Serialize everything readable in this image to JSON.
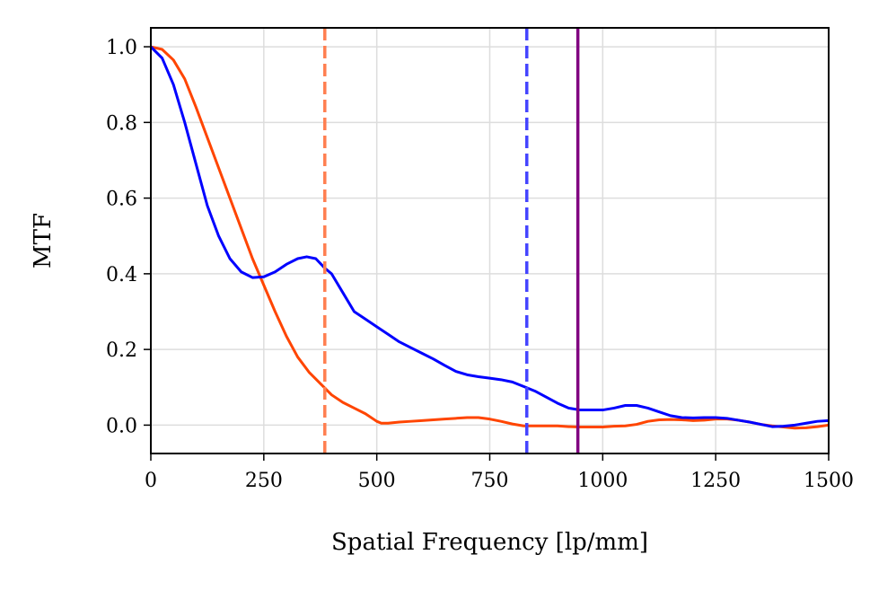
{
  "chart_data": {
    "type": "line",
    "title": "",
    "xlabel": "Spatial Frequency [lp/mm]",
    "ylabel": "MTF",
    "xlim": [
      0,
      1500
    ],
    "ylim": [
      -0.075,
      1.05
    ],
    "grid": true,
    "x_ticks": [
      0,
      250,
      500,
      750,
      1000,
      1250,
      1500
    ],
    "x_tick_labels": [
      "0",
      "250",
      "500",
      "750",
      "1000",
      "1250",
      "1500"
    ],
    "y_ticks": [
      0.0,
      0.2,
      0.4,
      0.6,
      0.8,
      1.0
    ],
    "y_tick_labels": [
      "0.0",
      "0.2",
      "0.4",
      "0.6",
      "0.8",
      "1.0"
    ],
    "series": [
      {
        "name": "orange-red-curve",
        "color": "#ff4500",
        "x": [
          0,
          25,
          50,
          75,
          100,
          125,
          150,
          175,
          200,
          225,
          250,
          275,
          300,
          325,
          350,
          375,
          400,
          425,
          450,
          475,
          500,
          510,
          525,
          550,
          575,
          600,
          625,
          650,
          675,
          700,
          725,
          750,
          775,
          800,
          825,
          850,
          875,
          900,
          925,
          950,
          975,
          1000,
          1025,
          1050,
          1075,
          1100,
          1125,
          1150,
          1175,
          1200,
          1225,
          1250,
          1275,
          1300,
          1325,
          1350,
          1375,
          1400,
          1425,
          1450,
          1475,
          1500
        ],
        "y": [
          1.0,
          0.993,
          0.965,
          0.915,
          0.84,
          0.76,
          0.68,
          0.6,
          0.52,
          0.44,
          0.37,
          0.3,
          0.235,
          0.18,
          0.14,
          0.11,
          0.08,
          0.06,
          0.045,
          0.03,
          0.01,
          0.005,
          0.005,
          0.008,
          0.01,
          0.012,
          0.014,
          0.016,
          0.018,
          0.02,
          0.02,
          0.016,
          0.01,
          0.003,
          -0.002,
          -0.002,
          -0.002,
          -0.002,
          -0.004,
          -0.005,
          -0.005,
          -0.005,
          -0.003,
          -0.002,
          0.002,
          0.01,
          0.014,
          0.015,
          0.014,
          0.012,
          0.013,
          0.016,
          0.016,
          0.013,
          0.008,
          0.002,
          -0.002,
          -0.005,
          -0.008,
          -0.007,
          -0.004,
          0.0
        ]
      },
      {
        "name": "blue-curve",
        "color": "#0000ff",
        "x": [
          0,
          25,
          50,
          75,
          100,
          125,
          150,
          175,
          200,
          225,
          250,
          275,
          300,
          325,
          345,
          365,
          385,
          400,
          425,
          450,
          475,
          500,
          525,
          550,
          575,
          600,
          625,
          650,
          675,
          700,
          725,
          750,
          775,
          800,
          825,
          850,
          875,
          900,
          925,
          950,
          975,
          1000,
          1025,
          1050,
          1075,
          1100,
          1125,
          1150,
          1175,
          1200,
          1225,
          1250,
          1275,
          1300,
          1325,
          1350,
          1375,
          1400,
          1425,
          1450,
          1475,
          1500
        ],
        "y": [
          1.0,
          0.97,
          0.9,
          0.8,
          0.69,
          0.58,
          0.5,
          0.44,
          0.405,
          0.39,
          0.392,
          0.405,
          0.425,
          0.44,
          0.445,
          0.44,
          0.415,
          0.4,
          0.35,
          0.3,
          0.28,
          0.26,
          0.24,
          0.22,
          0.205,
          0.19,
          0.175,
          0.158,
          0.142,
          0.133,
          0.128,
          0.124,
          0.12,
          0.114,
          0.102,
          0.09,
          0.074,
          0.058,
          0.045,
          0.04,
          0.04,
          0.04,
          0.045,
          0.052,
          0.052,
          0.045,
          0.035,
          0.025,
          0.02,
          0.019,
          0.02,
          0.02,
          0.018,
          0.013,
          0.008,
          0.002,
          -0.004,
          -0.003,
          0.0,
          0.005,
          0.01,
          0.012
        ]
      }
    ],
    "vertical_lines": [
      {
        "name": "orange-dashed-marker",
        "x": 385,
        "color": "#ff7f50",
        "style": "dashed"
      },
      {
        "name": "blue-dashed-marker",
        "x": 832,
        "color": "#4444ff",
        "style": "dashed"
      },
      {
        "name": "purple-solid-marker",
        "x": 945,
        "color": "#800080",
        "style": "solid"
      }
    ]
  }
}
